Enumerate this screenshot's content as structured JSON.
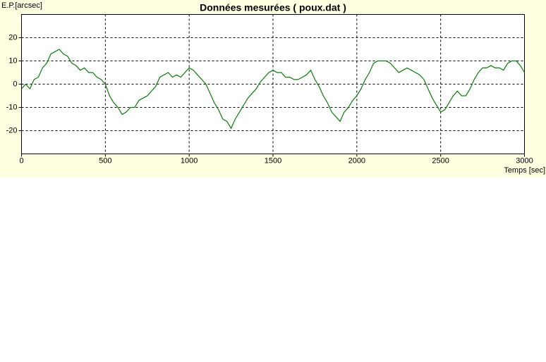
{
  "chart_data": {
    "type": "line",
    "title": "Données mesurées ( poux.dat )",
    "y_label": "E.P.[arcsec]",
    "x_label": "Temps [sec]",
    "xlim": [
      0,
      3000
    ],
    "ylim": [
      -30,
      30
    ],
    "xticks": [
      0,
      500,
      1000,
      1500,
      2000,
      2500,
      3000
    ],
    "yticks": [
      -20,
      -10,
      0,
      10,
      20
    ],
    "grid": true,
    "series": [
      {
        "color": "#0a7a0a",
        "x": [
          0,
          25,
          50,
          75,
          100,
          125,
          150,
          175,
          200,
          225,
          250,
          275,
          300,
          325,
          350,
          375,
          400,
          425,
          450,
          475,
          500,
          525,
          550,
          575,
          600,
          625,
          650,
          675,
          700,
          725,
          750,
          775,
          800,
          825,
          850,
          875,
          900,
          925,
          950,
          975,
          1000,
          1025,
          1050,
          1075,
          1100,
          1125,
          1150,
          1175,
          1200,
          1225,
          1250,
          1275,
          1300,
          1325,
          1350,
          1375,
          1400,
          1425,
          1450,
          1475,
          1500,
          1525,
          1550,
          1575,
          1600,
          1625,
          1650,
          1675,
          1700,
          1725,
          1750,
          1775,
          1800,
          1825,
          1850,
          1875,
          1900,
          1925,
          1950,
          1975,
          2000,
          2025,
          2050,
          2075,
          2100,
          2125,
          2150,
          2175,
          2200,
          2225,
          2250,
          2275,
          2300,
          2325,
          2350,
          2375,
          2400,
          2425,
          2450,
          2475,
          2500,
          2525,
          2550,
          2575,
          2600,
          2625,
          2650,
          2675,
          2700,
          2725,
          2750,
          2775,
          2800,
          2825,
          2850,
          2875,
          2900,
          2925,
          2950,
          2975,
          3000
        ],
        "values": [
          -2,
          0,
          -2,
          2,
          3,
          7,
          9,
          13,
          14,
          15,
          13,
          12,
          9,
          8,
          6,
          7,
          5,
          5,
          3,
          2,
          0,
          -5,
          -8,
          -10,
          -13,
          -12,
          -10,
          -10,
          -7,
          -6,
          -5,
          -3,
          -1,
          3,
          4,
          5,
          3,
          4,
          3,
          5,
          7,
          6,
          4,
          2,
          0,
          -4,
          -8,
          -11,
          -15,
          -16,
          -19,
          -15,
          -12,
          -9,
          -6,
          -4,
          -2,
          1,
          3,
          5,
          6,
          5,
          5,
          3,
          3,
          2,
          2,
          3,
          4,
          6,
          2,
          -1,
          -5,
          -8,
          -12,
          -14,
          -16,
          -12,
          -10,
          -7,
          -5,
          -2,
          2,
          5,
          9,
          10,
          10,
          10,
          9,
          7,
          5,
          6,
          7,
          6,
          5,
          4,
          2,
          -2,
          -6,
          -9,
          -12,
          -11,
          -8,
          -5,
          -3,
          -5,
          -5,
          -2,
          2,
          5,
          7,
          7,
          8,
          7,
          7,
          6,
          9,
          10,
          10,
          8,
          5
        ]
      }
    ]
  }
}
